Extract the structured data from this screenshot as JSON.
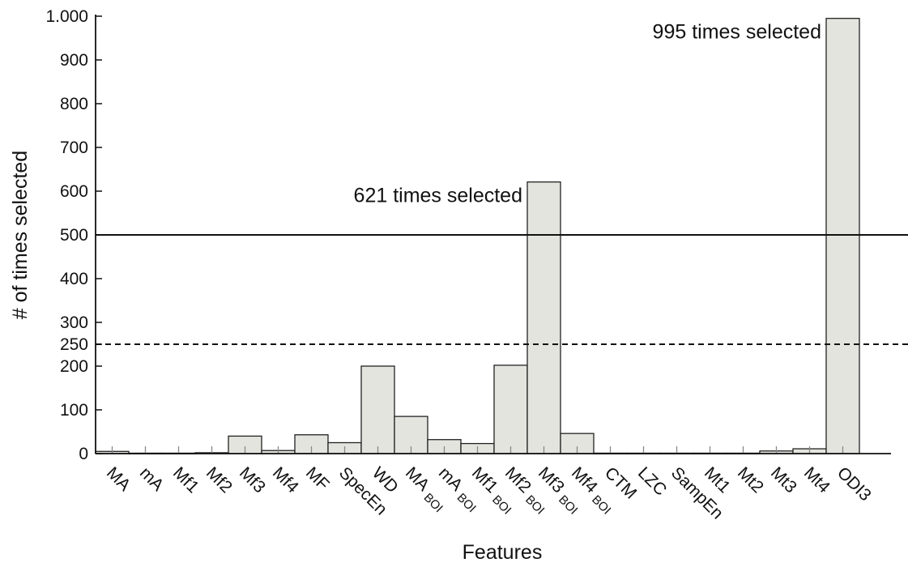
{
  "chart_data": {
    "type": "bar",
    "xlabel": "Features",
    "ylabel": "# of times selected",
    "ylim": [
      0,
      1000
    ],
    "yticks": [
      0,
      100,
      200,
      250,
      300,
      400,
      500,
      600,
      700,
      800,
      900,
      1000
    ],
    "ytick_labels": [
      "0",
      "100",
      "200",
      "250",
      "300",
      "400",
      "500",
      "600",
      "700",
      "800",
      "900",
      "1.000"
    ],
    "categories": [
      {
        "label": "MA",
        "sub": ""
      },
      {
        "label": "mA",
        "sub": ""
      },
      {
        "label": "Mf1",
        "sub": ""
      },
      {
        "label": "Mf2",
        "sub": ""
      },
      {
        "label": "Mf3",
        "sub": ""
      },
      {
        "label": "Mf4",
        "sub": ""
      },
      {
        "label": "MF",
        "sub": ""
      },
      {
        "label": "SpecEn",
        "sub": ""
      },
      {
        "label": "WD",
        "sub": ""
      },
      {
        "label": "MA",
        "sub": "BOI"
      },
      {
        "label": "mA",
        "sub": "BOI"
      },
      {
        "label": "Mf1",
        "sub": "BOI"
      },
      {
        "label": "Mf2",
        "sub": "BOI"
      },
      {
        "label": "Mf3",
        "sub": "BOI"
      },
      {
        "label": "Mf4",
        "sub": "BOI"
      },
      {
        "label": "CTM",
        "sub": ""
      },
      {
        "label": "LZC",
        "sub": ""
      },
      {
        "label": "SampEn",
        "sub": ""
      },
      {
        "label": "Mt1",
        "sub": ""
      },
      {
        "label": "Mt2",
        "sub": ""
      },
      {
        "label": "Mt3",
        "sub": ""
      },
      {
        "label": "Mt4",
        "sub": ""
      },
      {
        "label": "ODI3",
        "sub": ""
      }
    ],
    "values": [
      5,
      1,
      1,
      2,
      40,
      7,
      43,
      25,
      200,
      85,
      32,
      23,
      202,
      621,
      46,
      1,
      1,
      1,
      1,
      1,
      6,
      11,
      995
    ],
    "threshold_lines": [
      {
        "value": 500,
        "style": "solid"
      },
      {
        "value": 250,
        "style": "dashed"
      }
    ],
    "annotations": [
      {
        "text": "621 times selected",
        "category_index": 13
      },
      {
        "text": "995 times selected",
        "category_index": 22
      }
    ],
    "grid": false,
    "bar_color": "#e4e4df",
    "bar_edge_color": "#222222"
  }
}
